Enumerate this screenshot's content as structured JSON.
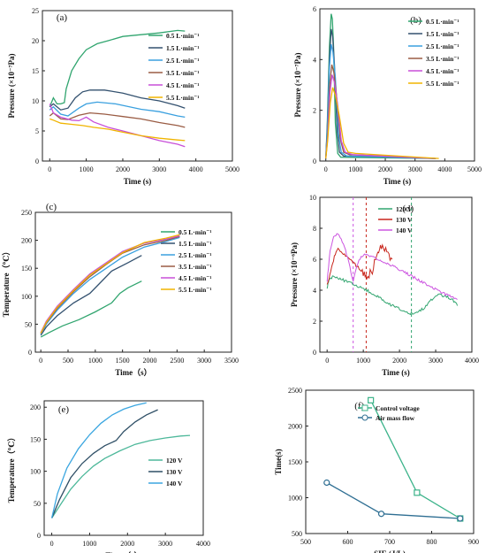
{
  "colors": {
    "s05": "#31a56f",
    "s15": "#33516f",
    "s25": "#3aa0df",
    "s35": "#9a5c44",
    "s45": "#c84fd8",
    "s55": "#f0b400",
    "v120": "#31a56f",
    "v130": "#c8261c",
    "v140": "#cc55e0",
    "f_v120": "#4db89a",
    "f_v130": "#2f4f66",
    "f_v140": "#3aa6e0",
    "control": "#3cb38a",
    "airflow": "#2f6f93"
  },
  "chart_data": [
    {
      "type": "line",
      "panel_label": "(a)",
      "xlabel": "Time (s)",
      "ylabel": "Pressure (×10⁻⁷Pa)",
      "xlim": [
        -200,
        5000
      ],
      "ylim": [
        0,
        25
      ],
      "xticks": [
        0,
        1000,
        2000,
        3000,
        4000,
        5000
      ],
      "yticks": [
        0,
        5,
        10,
        15,
        20,
        25
      ],
      "legend": "right",
      "series": [
        {
          "name": "0.5  L·min⁻¹",
          "color_key": "s05",
          "x": [
            0,
            100,
            200,
            300,
            400,
            450,
            600,
            800,
            1000,
            1300,
            1600,
            2000,
            2500,
            3000,
            3500,
            3700
          ],
          "y": [
            9,
            10.5,
            9.5,
            9.5,
            9.7,
            12,
            15,
            17,
            18.5,
            19.5,
            20,
            20.7,
            21,
            21.3,
            21.7,
            21.6
          ]
        },
        {
          "name": "1.5  L·min⁻¹",
          "color_key": "s15",
          "x": [
            0,
            100,
            300,
            500,
            700,
            900,
            1100,
            1500,
            2000,
            2500,
            3000,
            3500,
            3700
          ],
          "y": [
            9,
            9.5,
            8.5,
            8.8,
            10.5,
            11.5,
            11.8,
            11.8,
            11.3,
            10.5,
            10,
            9.2,
            8.8
          ]
        },
        {
          "name": "2.5  L·min⁻¹",
          "color_key": "s25",
          "x": [
            0,
            100,
            300,
            500,
            800,
            1000,
            1300,
            1800,
            2500,
            3000,
            3500,
            3700
          ],
          "y": [
            8.5,
            9,
            7.8,
            7.5,
            8.8,
            9.5,
            9.8,
            9.5,
            8.6,
            8.2,
            7.5,
            7.3
          ]
        },
        {
          "name": "3.5  L·min⁻¹",
          "color_key": "s35",
          "x": [
            0,
            100,
            300,
            500,
            800,
            1100,
            1500,
            2000,
            2500,
            3000,
            3500,
            3700
          ],
          "y": [
            7.5,
            8,
            7,
            6.9,
            7.6,
            8,
            7.8,
            7.4,
            7,
            6.4,
            5.9,
            5.6
          ]
        },
        {
          "name": "4.5  L·min⁻¹",
          "color_key": "s45",
          "x": [
            0,
            100,
            300,
            600,
            800,
            1000,
            1200,
            1600,
            2000,
            2500,
            3000,
            3500,
            3700
          ],
          "y": [
            9.5,
            8,
            7.3,
            6.8,
            6.7,
            7.3,
            6.5,
            5.6,
            5,
            4.2,
            3.4,
            2.8,
            2.4
          ]
        },
        {
          "name": "5.5  L·min⁻¹",
          "color_key": "s55",
          "x": [
            0,
            100,
            300,
            600,
            900,
            1200,
            1600,
            2000,
            2500,
            3000,
            3500,
            3700
          ],
          "y": [
            7,
            6.8,
            6.3,
            6.1,
            5.9,
            5.6,
            5.3,
            4.8,
            4.2,
            3.8,
            3.5,
            3.4
          ]
        }
      ]
    },
    {
      "type": "line",
      "panel_label": "(b)",
      "xlabel": "Time (s)",
      "ylabel": "Pressure (×10⁻⁷Pa)",
      "xlim": [
        -200,
        5000
      ],
      "ylim": [
        0,
        6
      ],
      "xticks": [
        0,
        1000,
        2000,
        3000,
        4000,
        5000
      ],
      "yticks": [
        0,
        2,
        4,
        6
      ],
      "legend": "right",
      "series": [
        {
          "name": "0.5  L·min⁻¹",
          "color_key": "s05",
          "x": [
            0,
            50,
            120,
            180,
            220,
            260,
            320,
            400,
            500,
            3700
          ],
          "y": [
            0.1,
            1.5,
            4.5,
            5.8,
            5.6,
            4.5,
            1.5,
            0.3,
            0.15,
            0.1
          ]
        },
        {
          "name": "1.5  L·min⁻¹",
          "color_key": "s15",
          "x": [
            0,
            50,
            120,
            180,
            230,
            290,
            380,
            460,
            600,
            3700
          ],
          "y": [
            0.1,
            1.3,
            4,
            5.2,
            4.9,
            3.8,
            1.2,
            0.35,
            0.2,
            0.1
          ]
        },
        {
          "name": "2.5  L·min⁻¹",
          "color_key": "s25",
          "x": [
            0,
            50,
            120,
            180,
            240,
            320,
            420,
            520,
            700,
            3700
          ],
          "y": [
            0.1,
            1.2,
            3.7,
            4.6,
            4.3,
            3.3,
            1.1,
            0.35,
            0.2,
            0.1
          ]
        },
        {
          "name": "3.5  L·min⁻¹",
          "color_key": "s35",
          "x": [
            0,
            60,
            130,
            200,
            270,
            360,
            480,
            600,
            800,
            3700
          ],
          "y": [
            0.1,
            1,
            3,
            3.8,
            3.5,
            2.6,
            0.9,
            0.35,
            0.25,
            0.1
          ]
        },
        {
          "name": "4.5  L·min⁻¹",
          "color_key": "s45",
          "x": [
            0,
            60,
            140,
            210,
            290,
            400,
            520,
            650,
            900,
            3700
          ],
          "y": [
            0.1,
            0.9,
            2.7,
            3.4,
            3.1,
            2.2,
            0.8,
            0.35,
            0.25,
            0.1
          ]
        },
        {
          "name": "5.5  L·min⁻¹",
          "color_key": "s55",
          "x": [
            0,
            60,
            150,
            230,
            320,
            450,
            600,
            750,
            1000,
            3800
          ],
          "y": [
            0.1,
            0.8,
            2.3,
            2.9,
            2.6,
            1.8,
            0.7,
            0.35,
            0.3,
            0.1
          ]
        }
      ]
    },
    {
      "type": "line",
      "panel_label": "(c)",
      "xlabel": "Time（s）",
      "ylabel": "Temperature（℃）",
      "xlim": [
        -100,
        3500
      ],
      "ylim": [
        0,
        250
      ],
      "xticks": [
        0,
        500,
        1000,
        1500,
        2000,
        2500,
        3000,
        3500
      ],
      "yticks": [
        0,
        50,
        100,
        150,
        200,
        250
      ],
      "legend": "right",
      "series": [
        {
          "name": "0.5  L·min⁻¹",
          "color_key": "s05",
          "x": [
            0,
            150,
            400,
            700,
            1000,
            1300,
            1450,
            1600,
            1850
          ],
          "y": [
            27,
            35,
            47,
            58,
            72,
            88,
            105,
            115,
            127
          ]
        },
        {
          "name": "1.5  L·min⁻¹",
          "color_key": "s15",
          "x": [
            0,
            100,
            300,
            600,
            900,
            1100,
            1300,
            1600,
            1850
          ],
          "y": [
            30,
            45,
            65,
            88,
            105,
            125,
            145,
            160,
            173
          ]
        },
        {
          "name": "2.5  L·min⁻¹",
          "color_key": "s25",
          "x": [
            0,
            100,
            300,
            600,
            900,
            1200,
            1500,
            1900,
            2300,
            2550
          ],
          "y": [
            32,
            50,
            75,
            105,
            130,
            150,
            170,
            188,
            198,
            205
          ]
        },
        {
          "name": "3.5  L·min⁻¹",
          "color_key": "s35",
          "x": [
            0,
            100,
            300,
            600,
            900,
            1200,
            1500,
            1900,
            2300,
            2550
          ],
          "y": [
            33,
            52,
            78,
            108,
            135,
            157,
            177,
            192,
            200,
            207
          ]
        },
        {
          "name": "4.5  L·min⁻¹",
          "color_key": "s45",
          "x": [
            0,
            100,
            300,
            600,
            900,
            1200,
            1500,
            1900,
            2300,
            2550
          ],
          "y": [
            35,
            55,
            82,
            112,
            140,
            160,
            180,
            195,
            202,
            208
          ]
        },
        {
          "name": "5.5  L·min⁻¹",
          "color_key": "s55",
          "x": [
            0,
            100,
            300,
            600,
            900,
            1200,
            1500,
            1900,
            2300,
            2550
          ],
          "y": [
            34,
            53,
            80,
            110,
            138,
            158,
            178,
            196,
            204,
            210
          ]
        }
      ]
    },
    {
      "type": "line",
      "panel_label": "(d)",
      "xlabel": "Time (s)",
      "ylabel": "Pressure (×10⁻⁶Pa)",
      "xlim": [
        -200,
        4000
      ],
      "ylim": [
        0,
        10
      ],
      "xticks": [
        0,
        1000,
        2000,
        3000,
        4000
      ],
      "yticks": [
        0,
        2,
        4,
        6,
        8,
        10
      ],
      "legend": "top-left",
      "vlines": [
        {
          "x": 720,
          "color_key": "v140"
        },
        {
          "x": 1080,
          "color_key": "v130"
        },
        {
          "x": 2330,
          "color_key": "v120"
        }
      ],
      "series": [
        {
          "name": "120 V",
          "color_key": "v120",
          "x": [
            0,
            50,
            150,
            300,
            500,
            800,
            1100,
            1400,
            1700,
            2000,
            2300,
            2500,
            2700,
            2900,
            3100,
            3300,
            3500,
            3600
          ],
          "y": [
            4.2,
            4.6,
            4.9,
            4.8,
            4.6,
            4.3,
            4,
            3.6,
            3.1,
            2.8,
            2.5,
            2.6,
            2.9,
            3.4,
            3.7,
            3.6,
            3.3,
            3
          ]
        },
        {
          "name": "130 V",
          "color_key": "v130",
          "x": [
            0,
            100,
            200,
            300,
            450,
            600,
            800,
            1000,
            1100,
            1250,
            1400,
            1500,
            1650,
            1800
          ],
          "y": [
            4.3,
            5.2,
            6.2,
            6.7,
            6.4,
            6.1,
            5.6,
            5.2,
            4.8,
            5.3,
            6.6,
            6.8,
            6.4,
            6
          ]
        },
        {
          "name": "140 V",
          "color_key": "v140",
          "x": [
            0,
            80,
            180,
            300,
            450,
            600,
            720,
            850,
            1000,
            1300,
            1700,
            2100,
            2500,
            2900,
            3300,
            3600
          ],
          "y": [
            4.5,
            6.5,
            7.5,
            7.7,
            7,
            5.8,
            4.6,
            5.8,
            6.3,
            6.1,
            5.7,
            5.2,
            4.7,
            4.2,
            3.7,
            3.4
          ]
        }
      ]
    },
    {
      "type": "line",
      "panel_label": "(e)",
      "xlabel": "Time（s）",
      "ylabel": "Temperature（℃）",
      "xlim": [
        -200,
        4000
      ],
      "ylim": [
        0,
        210
      ],
      "xticks": [
        0,
        1000,
        2000,
        3000,
        4000
      ],
      "yticks": [
        0,
        50,
        100,
        150,
        200
      ],
      "legend": "right",
      "series": [
        {
          "name": "120 V",
          "color_key": "f_v120",
          "x": [
            0,
            200,
            500,
            800,
            1100,
            1400,
            1800,
            2200,
            2600,
            3000,
            3400,
            3650
          ],
          "y": [
            27,
            45,
            72,
            92,
            108,
            120,
            132,
            142,
            148,
            152,
            155,
            156
          ]
        },
        {
          "name": "130 V",
          "color_key": "f_v130",
          "x": [
            0,
            200,
            500,
            800,
            1100,
            1400,
            1700,
            1900,
            2200,
            2500,
            2800
          ],
          "y": [
            27,
            55,
            90,
            112,
            128,
            140,
            148,
            162,
            177,
            188,
            196
          ]
        },
        {
          "name": "140 V",
          "color_key": "f_v140",
          "x": [
            0,
            150,
            400,
            700,
            1000,
            1300,
            1600,
            1900,
            2200,
            2500
          ],
          "y": [
            27,
            65,
            105,
            135,
            157,
            175,
            188,
            197,
            203,
            207
          ]
        }
      ]
    },
    {
      "type": "line",
      "panel_label": "(f)",
      "xlabel": "SIE (J/L)",
      "ylabel": "Time(s)",
      "xlim": [
        500,
        900
      ],
      "ylim": [
        500,
        2500
      ],
      "xticks": [
        500,
        600,
        700,
        800,
        900
      ],
      "yticks": [
        500,
        1000,
        1500,
        2000,
        2500
      ],
      "legend": "top",
      "series": [
        {
          "name": "Control voltage",
          "color_key": "control",
          "marker": "square",
          "x": [
            655,
            765,
            868
          ],
          "y": [
            2360,
            1070,
            710
          ]
        },
        {
          "name": "Air mass flow",
          "color_key": "airflow",
          "marker": "circle",
          "x": [
            550,
            680,
            868
          ],
          "y": [
            1210,
            775,
            710
          ]
        }
      ]
    }
  ]
}
